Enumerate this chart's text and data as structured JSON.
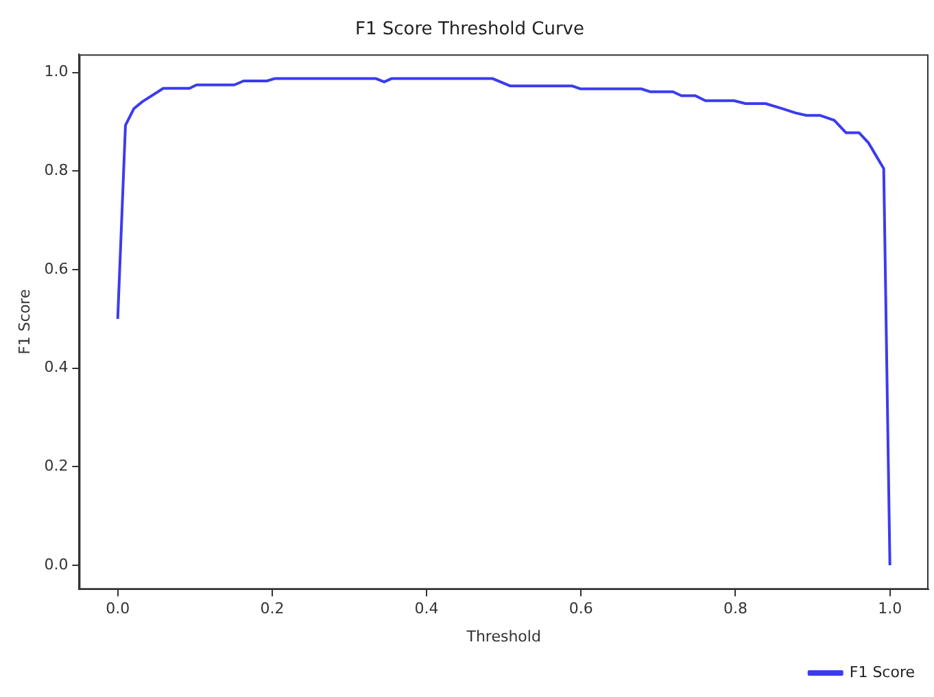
{
  "chart_data": {
    "type": "line",
    "title": "F1 Score Threshold Curve",
    "xlabel": "Threshold",
    "ylabel": "F1 Score",
    "x": [
      0,
      0.01,
      0.021,
      0.032,
      0.059,
      0.093,
      0.102,
      0.151,
      0.163,
      0.193,
      0.204,
      0.334,
      0.345,
      0.355,
      0.485,
      0.508,
      0.588,
      0.599,
      0.678,
      0.69,
      0.719,
      0.73,
      0.748,
      0.761,
      0.798,
      0.813,
      0.839,
      0.86,
      0.878,
      0.892,
      0.91,
      0.928,
      0.943,
      0.96,
      0.972,
      0.992,
      1.0
    ],
    "series": [
      {
        "name": "F1 Score",
        "color": "#3b3bf0",
        "values": [
          0.5,
          0.893,
          0.927,
          0.941,
          0.968,
          0.968,
          0.975,
          0.975,
          0.983,
          0.983,
          0.988,
          0.988,
          0.981,
          0.988,
          0.988,
          0.973,
          0.973,
          0.967,
          0.967,
          0.961,
          0.961,
          0.953,
          0.953,
          0.943,
          0.943,
          0.937,
          0.937,
          0.927,
          0.918,
          0.913,
          0.913,
          0.903,
          0.878,
          0.878,
          0.858,
          0.805,
          0.0
        ]
      }
    ],
    "xlim": [
      -0.05,
      1.05
    ],
    "xticks": [
      {
        "value": 0,
        "label": "0.0"
      },
      0.2,
      0.4,
      0.6,
      0.8,
      {
        "value": 1,
        "label": "1.0"
      }
    ],
    "ylim": [
      -0.049,
      1.037
    ],
    "yticks": [
      {
        "value": 0,
        "label": "0.0"
      },
      0.2,
      0.4,
      0.6,
      0.8,
      {
        "value": 1,
        "label": "1.0"
      }
    ],
    "grid": false,
    "legend": "bottom right",
    "marker": "none",
    "line_style": "solid"
  }
}
